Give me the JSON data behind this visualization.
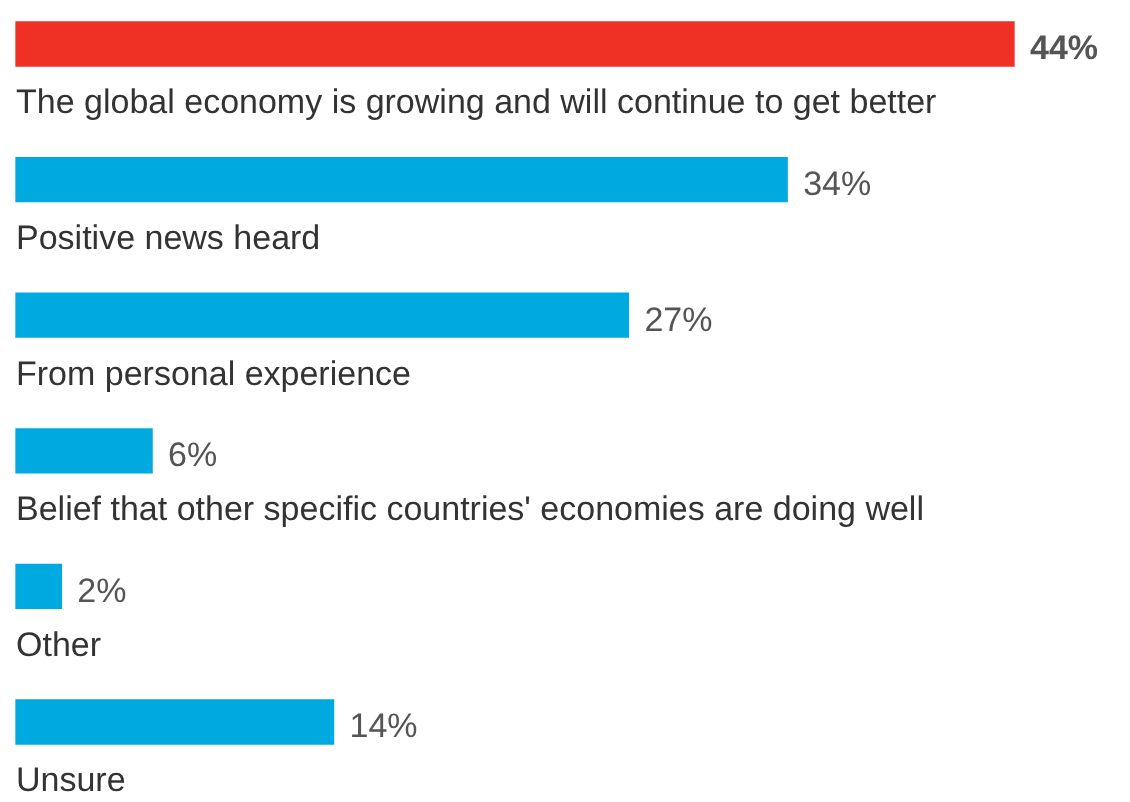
{
  "chart_data": {
    "type": "bar",
    "orientation": "horizontal",
    "categories": [
      "The global economy is growing and will continue to get better",
      "Positive news heard",
      "From personal experience",
      "Belief that other specific countries' economies are doing well",
      "Other",
      "Unsure"
    ],
    "values": [
      44,
      34,
      27,
      6,
      2,
      14
    ],
    "colors": [
      "#ee3124",
      "#00a9e0",
      "#00a9e0",
      "#00a9e0",
      "#00a9e0",
      "#00a9e0"
    ],
    "value_labels": [
      "44%",
      "34%",
      "27%",
      "6%",
      "2%",
      "14%"
    ]
  }
}
